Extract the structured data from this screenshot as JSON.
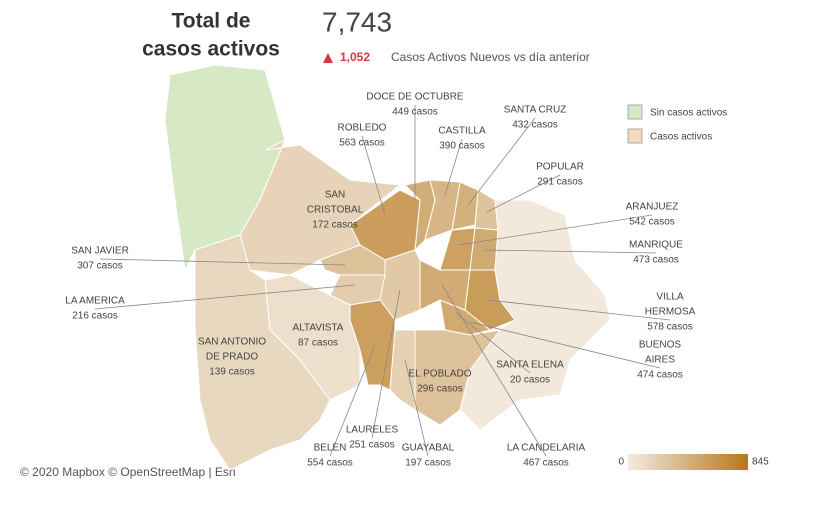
{
  "header": {
    "title_lines": [
      "Total de",
      "casos activos"
    ],
    "total": "7,743",
    "new_cases": "1,052",
    "new_cases_text": "Casos Activos Nuevos  vs día anterior"
  },
  "legend": {
    "items": [
      {
        "label": "Sin casos activos",
        "color": "#d6e8c4"
      },
      {
        "label": "Casos activos",
        "color": "#f3d9bd"
      }
    ]
  },
  "scale": {
    "min": 0,
    "max": 845,
    "colors": [
      "#f3ebe0",
      "#b7771c"
    ]
  },
  "no_cases_color": "#d6e8c4",
  "regions": [
    {
      "name_lines": [
        "DOCE DE OCTUBRE"
      ],
      "cases": 449,
      "cases_label": "449 casos"
    },
    {
      "name_lines": [
        "SANTA CRUZ"
      ],
      "cases": 432,
      "cases_label": "432 casos"
    },
    {
      "name_lines": [
        "ROBLEDO"
      ],
      "cases": 563,
      "cases_label": "563 casos"
    },
    {
      "name_lines": [
        "CASTILLA"
      ],
      "cases": 390,
      "cases_label": "390 casos"
    },
    {
      "name_lines": [
        "POPULAR"
      ],
      "cases": 291,
      "cases_label": "291 casos"
    },
    {
      "name_lines": [
        "SAN",
        "CRISTOBAL"
      ],
      "cases": 172,
      "cases_label": "172 casos"
    },
    {
      "name_lines": [
        "ARANJUEZ"
      ],
      "cases": 542,
      "cases_label": "542 casos"
    },
    {
      "name_lines": [
        "SAN JAVIER"
      ],
      "cases": 307,
      "cases_label": "307 casos"
    },
    {
      "name_lines": [
        "MANRIQUE"
      ],
      "cases": 473,
      "cases_label": "473 casos"
    },
    {
      "name_lines": [
        "LA AMERICA"
      ],
      "cases": 216,
      "cases_label": "216 casos"
    },
    {
      "name_lines": [
        "VILLA",
        "HERMOSA"
      ],
      "cases": 578,
      "cases_label": "578 casos"
    },
    {
      "name_lines": [
        "ALTAVISTA"
      ],
      "cases": 87,
      "cases_label": "87 casos"
    },
    {
      "name_lines": [
        "BUENOS",
        "AIRES"
      ],
      "cases": 474,
      "cases_label": "474 casos"
    },
    {
      "name_lines": [
        "SAN ANTONIO",
        "DE PRADO"
      ],
      "cases": 139,
      "cases_label": "139 casos"
    },
    {
      "name_lines": [
        "SANTA ELENA"
      ],
      "cases": 20,
      "cases_label": "20 casos"
    },
    {
      "name_lines": [
        "EL POBLADO"
      ],
      "cases": 296,
      "cases_label": "296 casos"
    },
    {
      "name_lines": [
        "LAURELES"
      ],
      "cases": 251,
      "cases_label": "251 casos"
    },
    {
      "name_lines": [
        "BELEN"
      ],
      "cases": 554,
      "cases_label": "554 casos"
    },
    {
      "name_lines": [
        "GUAYABAL"
      ],
      "cases": 197,
      "cases_label": "197 casos"
    },
    {
      "name_lines": [
        "LA CANDELARIA"
      ],
      "cases": 467,
      "cases_label": "467 casos"
    }
  ],
  "attribution": "© 2020 Mapbox © OpenStreetMap | Esri"
}
